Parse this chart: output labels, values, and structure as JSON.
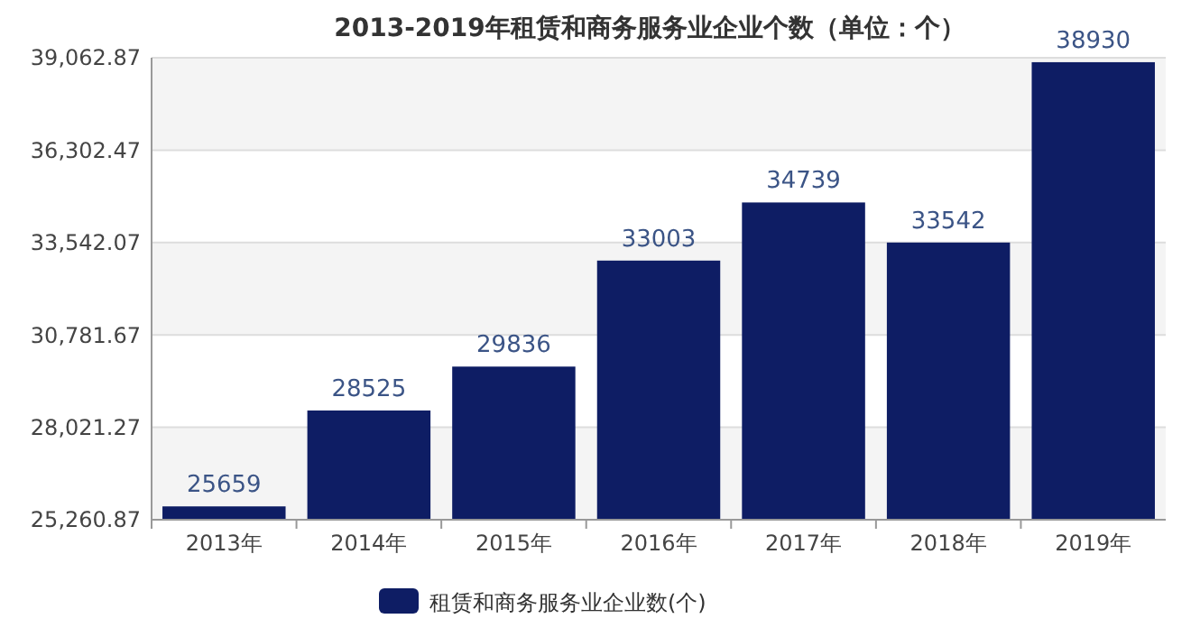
{
  "chart_data": {
    "type": "bar",
    "title": "2013-2019年租赁和商务服务业企业个数（单位：个）",
    "categories": [
      "2013年",
      "2014年",
      "2015年",
      "2016年",
      "2017年",
      "2018年",
      "2019年"
    ],
    "series": [
      {
        "name": "租赁和商务服务业企业数(个)",
        "color": "#0e1d64",
        "values": [
          25659,
          28525,
          29836,
          33003,
          34739,
          33542,
          38930
        ]
      }
    ],
    "ylim": [
      25260.87,
      39062.87
    ],
    "yticks": [
      {
        "value": 25260.87,
        "label": "25,260.87"
      },
      {
        "value": 28021.27,
        "label": "28,021.27"
      },
      {
        "value": 30781.67,
        "label": "30,781.67"
      },
      {
        "value": 33542.07,
        "label": "33,542.07"
      },
      {
        "value": 36302.47,
        "label": "36,302.47"
      },
      {
        "value": 39062.87,
        "label": "39,062.87"
      }
    ],
    "grid": "y",
    "legend": "bottom",
    "data_labels": true
  }
}
